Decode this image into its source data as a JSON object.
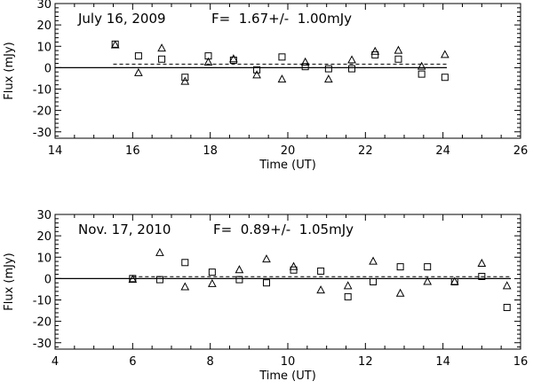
{
  "chart_data": [
    {
      "type": "scatter",
      "title": "July 16, 2009",
      "flux_text": "F=  1.67+/-  1.00mJy",
      "xlabel": "Time (UT)",
      "ylabel": "Flux (mJy)",
      "xlim": [
        14,
        26
      ],
      "ylim": [
        -33,
        30
      ],
      "xticks": [
        14,
        16,
        18,
        20,
        22,
        24,
        26
      ],
      "yticks": [
        -30,
        -20,
        -10,
        0,
        10,
        20,
        30
      ],
      "mean_line": {
        "x": [
          15.5,
          24.1
        ],
        "y": 1.67,
        "style": "dashed"
      },
      "zero_line": {
        "x": [
          14,
          24.1
        ],
        "y": 0
      },
      "series": [
        {
          "marker": "square",
          "points": [
            [
              15.55,
              11.0
            ],
            [
              16.15,
              5.5
            ],
            [
              16.75,
              4.0
            ],
            [
              17.35,
              -4.5
            ],
            [
              17.95,
              5.5
            ],
            [
              18.6,
              3.5
            ],
            [
              19.2,
              -1.0
            ],
            [
              19.85,
              5.0
            ],
            [
              20.45,
              0.5
            ],
            [
              21.05,
              -0.5
            ],
            [
              21.65,
              -0.5
            ],
            [
              22.25,
              6.0
            ],
            [
              22.85,
              4.0
            ],
            [
              23.45,
              -3.0
            ],
            [
              24.05,
              -4.5
            ]
          ]
        },
        {
          "marker": "triangle",
          "points": [
            [
              15.55,
              10.5
            ],
            [
              16.15,
              -2.5
            ],
            [
              16.75,
              9.0
            ],
            [
              17.35,
              -6.5
            ],
            [
              17.95,
              2.5
            ],
            [
              18.6,
              4.0
            ],
            [
              19.2,
              -3.5
            ],
            [
              19.85,
              -5.5
            ],
            [
              20.45,
              2.5
            ],
            [
              21.05,
              -5.5
            ],
            [
              21.65,
              3.5
            ],
            [
              22.25,
              7.5
            ],
            [
              22.85,
              8.0
            ],
            [
              23.45,
              0.5
            ],
            [
              24.05,
              6.0
            ]
          ]
        }
      ]
    },
    {
      "type": "scatter",
      "title": "Nov. 17, 2010",
      "flux_text": "F=  0.89+/-  1.05mJy",
      "xlabel": "Time (UT)",
      "ylabel": "Flux (mJy)",
      "xlim": [
        4,
        16
      ],
      "ylim": [
        -33,
        30
      ],
      "xticks": [
        4,
        6,
        8,
        10,
        12,
        14,
        16
      ],
      "yticks": [
        -30,
        -20,
        -10,
        0,
        10,
        20,
        30
      ],
      "mean_line": {
        "x": [
          6,
          15.75
        ],
        "y": 0.89,
        "style": "dashed"
      },
      "zero_line": {
        "x": [
          4,
          15.75
        ],
        "y": 0
      },
      "series": [
        {
          "marker": "square",
          "points": [
            [
              6.0,
              0.0
            ],
            [
              6.7,
              -0.5
            ],
            [
              7.35,
              7.5
            ],
            [
              8.05,
              3.0
            ],
            [
              8.75,
              -0.5
            ],
            [
              9.45,
              -2.0
            ],
            [
              10.15,
              4.0
            ],
            [
              10.85,
              3.5
            ],
            [
              11.55,
              -8.5
            ],
            [
              12.2,
              -1.5
            ],
            [
              12.9,
              5.5
            ],
            [
              13.6,
              5.5
            ],
            [
              14.3,
              -1.5
            ],
            [
              15.0,
              1.0
            ],
            [
              15.65,
              -13.5
            ]
          ]
        },
        {
          "marker": "triangle",
          "points": [
            [
              6.0,
              -0.5
            ],
            [
              6.7,
              12.0
            ],
            [
              7.35,
              -4.0
            ],
            [
              8.05,
              -2.5
            ],
            [
              8.75,
              4.0
            ],
            [
              9.45,
              9.0
            ],
            [
              10.15,
              5.5
            ],
            [
              10.85,
              -5.5
            ],
            [
              11.55,
              -3.5
            ],
            [
              12.2,
              8.0
            ],
            [
              12.9,
              -7.0
            ],
            [
              13.6,
              -1.5
            ],
            [
              14.3,
              -1.5
            ],
            [
              15.0,
              7.0
            ],
            [
              15.65,
              -3.5
            ]
          ]
        }
      ]
    }
  ]
}
